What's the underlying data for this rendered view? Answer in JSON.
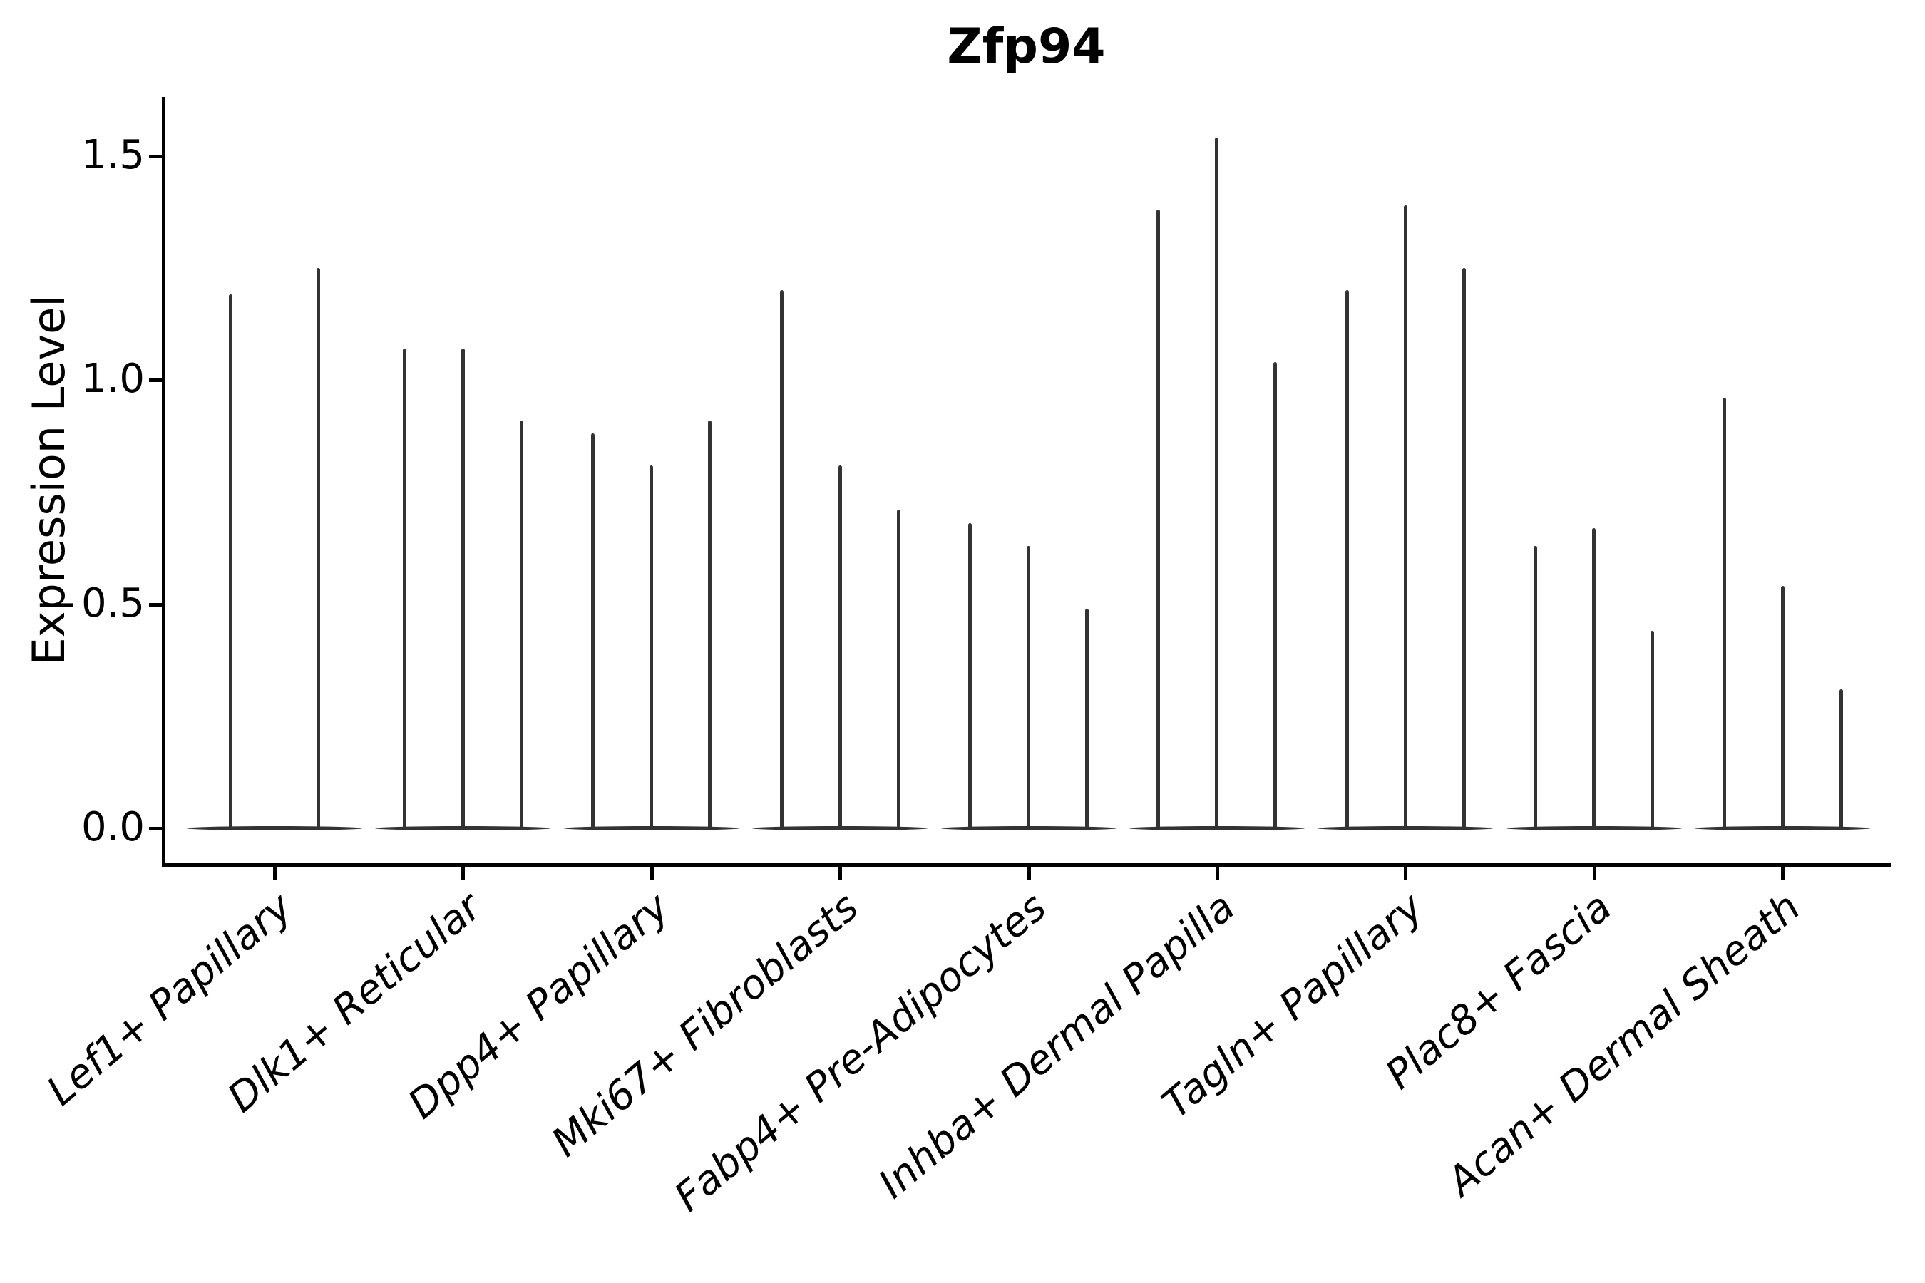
{
  "title": "Zfp94",
  "chart_data": {
    "type": "violin",
    "title": "Zfp94",
    "xlabel": "",
    "ylabel": "Expression Level",
    "ytick_labels": [
      "0.0",
      "0.5",
      "1.0",
      "1.5"
    ],
    "ytick_values": [
      0.0,
      0.5,
      1.0,
      1.5
    ],
    "ylim": [
      -0.08,
      1.63
    ],
    "grid": false,
    "legend": "none",
    "categories": [
      "Lef1+ Papillary",
      "Dlk1+ Reticular",
      "Dpp4+ Papillary",
      "Mki67+ Fibroblasts",
      "Fabp4+ Pre-Adipocytes",
      "Inhba+ Dermal Papilla",
      "Tagln+ Papillary",
      "Plac8+ Fascia",
      "Acan+ Dermal Sheath"
    ],
    "series": [
      {
        "category": "Lef1+ Papillary",
        "violin_peaks": [
          1.19,
          1.25
        ]
      },
      {
        "category": "Dlk1+ Reticular",
        "violin_peaks": [
          1.07,
          1.07,
          0.91
        ]
      },
      {
        "category": "Dpp4+ Papillary",
        "violin_peaks": [
          0.88,
          0.81,
          0.91
        ]
      },
      {
        "category": "Mki67+ Fibroblasts",
        "violin_peaks": [
          1.2,
          0.81,
          0.71
        ]
      },
      {
        "category": "Fabp4+ Pre-Adipocytes",
        "violin_peaks": [
          0.68,
          0.63,
          0.49
        ]
      },
      {
        "category": "Inhba+ Dermal Papilla",
        "violin_peaks": [
          1.38,
          1.54,
          1.04
        ]
      },
      {
        "category": "Tagln+ Papillary",
        "violin_peaks": [
          1.2,
          1.39,
          1.25
        ]
      },
      {
        "category": "Plac8+ Fascia",
        "violin_peaks": [
          0.63,
          0.67,
          0.44
        ]
      },
      {
        "category": "Acan+ Dermal Sheath",
        "violin_peaks": [
          0.96,
          0.54,
          0.31
        ]
      }
    ],
    "colors": {
      "violin": "#333333",
      "spine": "#000000",
      "text": "#000000",
      "background": "#ffffff"
    }
  }
}
